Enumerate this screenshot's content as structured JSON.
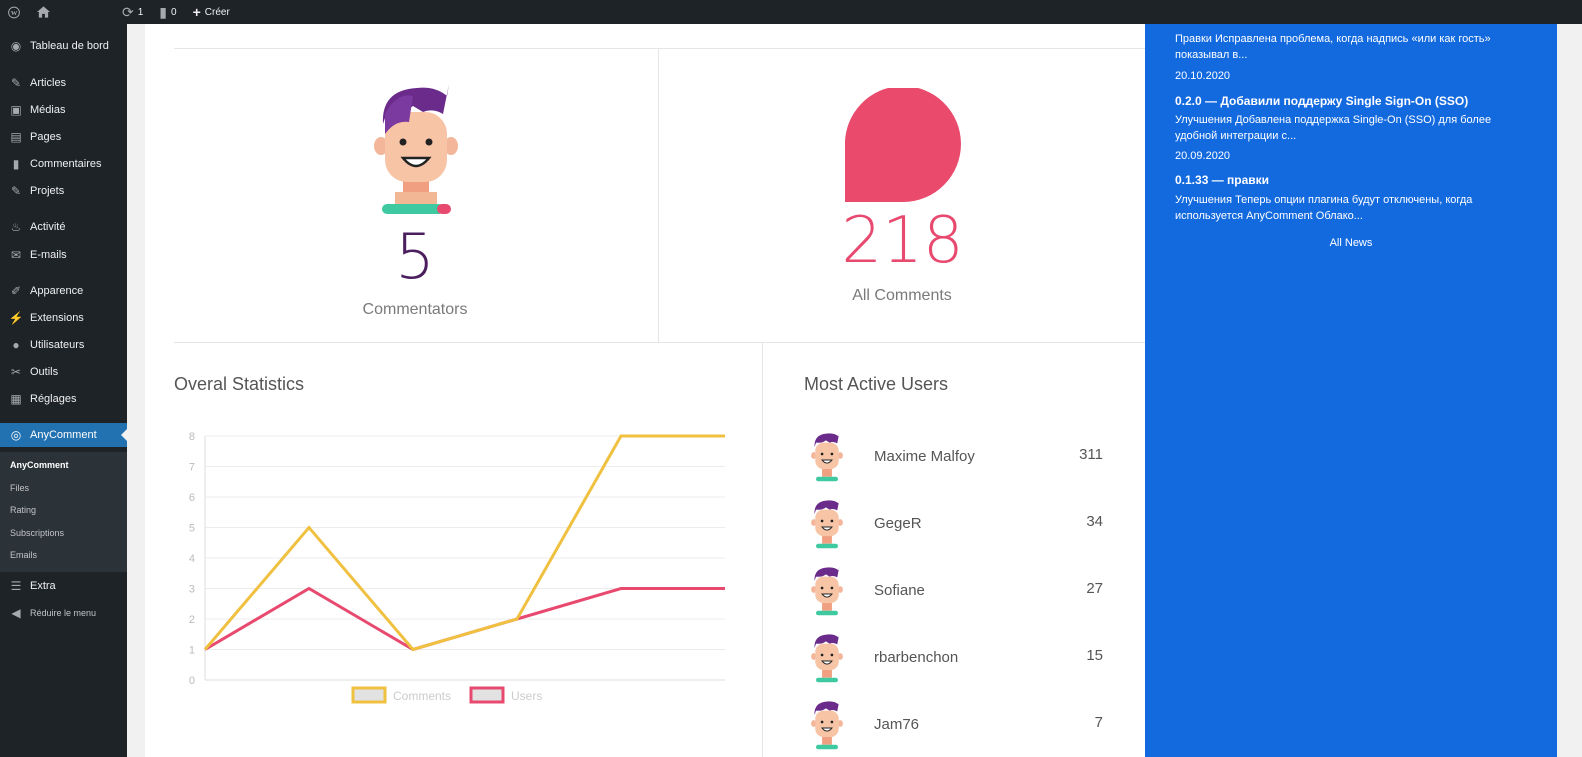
{
  "adminbar": {
    "updates_count": "1",
    "comments_count": "0",
    "new_label": "Créer"
  },
  "sidebar": {
    "items": [
      {
        "label": "Tableau de bord",
        "icon": "dashboard-icon"
      },
      {
        "label": "Articles",
        "icon": "pin-icon"
      },
      {
        "label": "Médias",
        "icon": "media-icon"
      },
      {
        "label": "Pages",
        "icon": "page-icon"
      },
      {
        "label": "Commentaires",
        "icon": "comment-icon"
      },
      {
        "label": "Projets",
        "icon": "pin-icon"
      },
      {
        "label": "Activité",
        "icon": "activity-icon"
      },
      {
        "label": "E-mails",
        "icon": "email-icon"
      },
      {
        "label": "Apparence",
        "icon": "brush-icon"
      },
      {
        "label": "Extensions",
        "icon": "plugin-icon"
      },
      {
        "label": "Utilisateurs",
        "icon": "user-icon"
      },
      {
        "label": "Outils",
        "icon": "wrench-icon"
      },
      {
        "label": "Réglages",
        "icon": "settings-icon"
      },
      {
        "label": "AnyComment",
        "icon": "anycomment-icon"
      }
    ],
    "submenu": [
      "AnyComment",
      "Files",
      "Rating",
      "Subscriptions",
      "Emails"
    ],
    "extra_label": "Extra",
    "collapse_label": "Réduire le menu"
  },
  "stats": {
    "commentators_value": "5",
    "commentators_label": "Commentators",
    "comments_value": "218",
    "comments_label": "All Comments"
  },
  "overall": {
    "title": "Overal Statistics"
  },
  "chart_data": {
    "type": "line",
    "title": "Overal Statistics",
    "x": [
      1,
      2,
      3,
      4,
      5,
      6
    ],
    "ylim": [
      0,
      8
    ],
    "yticks": [
      "0",
      "1",
      "2",
      "3",
      "4",
      "5",
      "6",
      "7",
      "8"
    ],
    "grid": true,
    "legend": "bottom",
    "series": [
      {
        "name": "Comments",
        "color": "#f0c040",
        "values": [
          1,
          5,
          1,
          2,
          8,
          8
        ]
      },
      {
        "name": "Users",
        "color": "#e84a6f",
        "values": [
          1,
          3,
          1,
          2,
          3,
          3
        ]
      }
    ]
  },
  "active_users": {
    "title": "Most Active Users",
    "users": [
      {
        "name": "Maxime Malfoy",
        "count": "311"
      },
      {
        "name": "GegeR",
        "count": "34"
      },
      {
        "name": "Sofiane",
        "count": "27"
      },
      {
        "name": "rbarbenchon",
        "count": "15"
      },
      {
        "name": "Jam76",
        "count": "7"
      }
    ]
  },
  "news": {
    "top_text": "Правки Исправлена проблема, когда надпись «или как гость» показывал в...",
    "items": [
      {
        "date": "20.10.2020",
        "title": "0.2.0 — Добавили поддержу Single Sign-On (SSO)",
        "text": "Улучшения Добавлена поддержка Single-On (SSO) для более удобной интеграции с..."
      },
      {
        "date": "20.09.2020",
        "title": "0.1.33 — правки",
        "text": "Улучшения Теперь опции плагина будут отключены, когда используется AnyComment Облако..."
      }
    ],
    "all_news_label": "All News"
  },
  "colors": {
    "accent": "#2271b1",
    "news_bg": "#136adf",
    "commentators_color": "#4b1f5e",
    "comments_color": "#e84a6f"
  }
}
